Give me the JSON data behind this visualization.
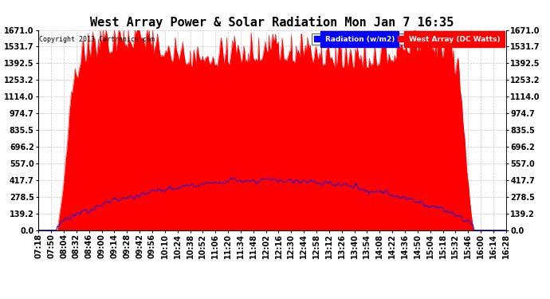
{
  "title": "West Array Power & Solar Radiation Mon Jan 7 16:35",
  "copyright": "Copyright 2013 Cartronics.com",
  "yticks": [
    0.0,
    139.2,
    278.5,
    417.7,
    557.0,
    696.2,
    835.5,
    974.7,
    1114.0,
    1253.2,
    1392.5,
    1531.7,
    1671.0
  ],
  "ymax": 1671.0,
  "ymin": 0.0,
  "legend_labels": [
    "Radiation (w/m2)",
    "West Array (DC Watts)"
  ],
  "legend_colors": [
    "#0000ff",
    "#ff0000"
  ],
  "background_color": "#ffffff",
  "plot_bg_color": "#ffffff",
  "grid_color": "#c8c8c8",
  "title_fontsize": 11,
  "tick_fontsize": 7,
  "xtick_labels": [
    "07:18",
    "07:50",
    "08:04",
    "08:32",
    "08:46",
    "09:00",
    "09:14",
    "09:28",
    "09:42",
    "09:56",
    "10:10",
    "10:24",
    "10:38",
    "10:52",
    "11:06",
    "11:20",
    "11:34",
    "11:48",
    "12:02",
    "12:16",
    "12:30",
    "12:44",
    "12:58",
    "13:12",
    "13:26",
    "13:40",
    "13:54",
    "14:08",
    "14:22",
    "14:36",
    "14:50",
    "15:04",
    "15:18",
    "15:32",
    "15:46",
    "16:00",
    "16:14",
    "16:28"
  ],
  "num_points": 500
}
